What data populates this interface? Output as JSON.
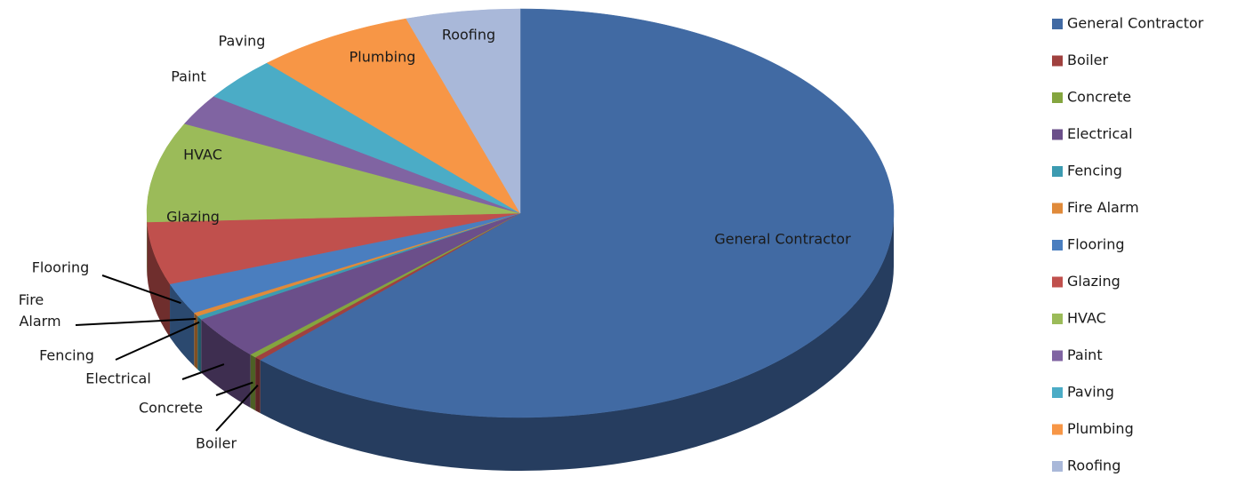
{
  "chart_data": {
    "type": "pie",
    "categories": [
      "General Contractor",
      "Boiler",
      "Concrete",
      "Electrical",
      "Fencing",
      "Fire Alarm",
      "Flooring",
      "Glazing",
      "HVAC",
      "Paint",
      "Paving",
      "Plumbing",
      "Roofing"
    ],
    "values": [
      63,
      0.3,
      0.3,
      3.5,
      0.3,
      0.3,
      2.5,
      5,
      8,
      2.5,
      3.5,
      7,
      5
    ],
    "colors": [
      "#416aa3",
      "#a0413f",
      "#84a53f",
      "#6b4f8a",
      "#3c9bb1",
      "#e08a3a",
      "#4a7ebf",
      "#c0504d",
      "#9bbb59",
      "#8064a2",
      "#4bacc6",
      "#f79646",
      "#a9b8d9"
    ],
    "legend": "right"
  }
}
